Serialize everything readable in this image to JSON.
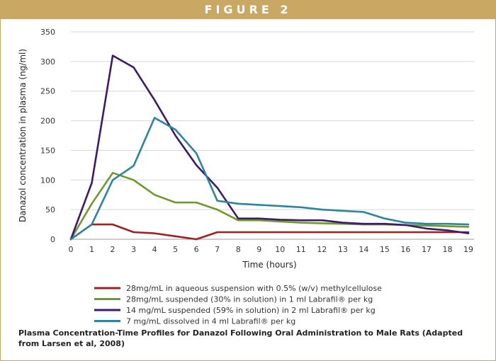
{
  "figure_label": "FIGURE 2",
  "caption": "Plasma Concentration-Time Profiles for Danazol Following Oral Administration to Male Rats (Adapted from Larsen et al, 2008)",
  "chart_data": {
    "type": "line",
    "xlabel": "Time (hours)",
    "ylabel": "Danazol concentration in plasma (ng/ml)",
    "xlim": [
      0,
      19
    ],
    "ylim": [
      0,
      350
    ],
    "x_ticks": [
      "0",
      "1",
      "2",
      "3",
      "4",
      "5",
      "6",
      "7",
      "8",
      "9",
      "10",
      "11",
      "12",
      "13",
      "14",
      "15",
      "16",
      "17",
      "18",
      "19"
    ],
    "y_ticks": [
      "0",
      "50",
      "100",
      "150",
      "200",
      "250",
      "300",
      "350"
    ],
    "grid": "horizontal",
    "legend_position": "bottom",
    "series": [
      {
        "name": "28mg/mL in aqueous suspension with 0.5% (w/v) methylcellulose",
        "color": "#a3201f",
        "x": [
          0,
          1,
          2,
          3,
          4,
          5,
          6,
          7,
          8,
          19
        ],
        "y": [
          0,
          25,
          25,
          12,
          10,
          5,
          0,
          12,
          12,
          12
        ]
      },
      {
        "name": "28mg/mL suspended (30% in solution) in 1 ml Labrafil® per kg",
        "color": "#6f9a2b",
        "x": [
          0,
          1,
          2,
          3,
          4,
          5,
          6,
          7,
          8,
          9,
          10,
          11,
          12,
          13,
          14,
          15,
          16,
          17,
          18,
          19
        ],
        "y": [
          0,
          60,
          112,
          100,
          75,
          62,
          62,
          50,
          32,
          32,
          30,
          28,
          27,
          26,
          25,
          25,
          24,
          23,
          22,
          21
        ]
      },
      {
        "name": "14 mg/mL suspended (59% in solution) in 2 ml Labrafil® per kg",
        "color": "#3d1a6e",
        "x": [
          0,
          1,
          2,
          3,
          4,
          5,
          6,
          7,
          8,
          9,
          10,
          11,
          12,
          13,
          14,
          15,
          16,
          17,
          18,
          19
        ],
        "y": [
          0,
          95,
          310,
          290,
          235,
          175,
          125,
          87,
          35,
          35,
          33,
          32,
          32,
          28,
          26,
          26,
          24,
          18,
          15,
          10
        ]
      },
      {
        "name": "7 mg/mL dissolved in 4 ml Labrafil® per kg",
        "color": "#2a86a0",
        "x": [
          0,
          1,
          2,
          3,
          4,
          5,
          6,
          7,
          8,
          9,
          10,
          11,
          12,
          13,
          14,
          15,
          16,
          17,
          18,
          19
        ],
        "y": [
          0,
          25,
          100,
          124,
          205,
          185,
          145,
          65,
          60,
          58,
          56,
          54,
          50,
          48,
          46,
          35,
          28,
          26,
          26,
          25
        ]
      }
    ]
  }
}
